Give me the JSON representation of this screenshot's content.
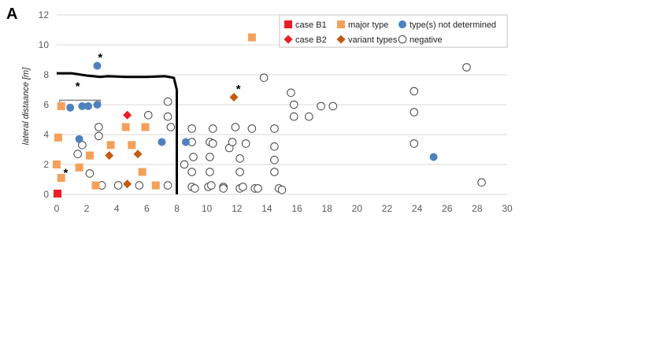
{
  "panel_label": "A",
  "chart_data": {
    "type": "scatter",
    "title": "",
    "xlabel": "",
    "ylabel": "lateral distaance [m]",
    "xlim": [
      0,
      30
    ],
    "ylim": [
      0,
      12
    ],
    "xticks": [
      "0",
      "2",
      "4",
      "6",
      "8",
      "10",
      "12",
      "14",
      "16",
      "18",
      "20",
      "22",
      "24",
      "26",
      "28",
      "30"
    ],
    "yticks": [
      "0",
      "2",
      "4",
      "6",
      "8",
      "10",
      "12"
    ],
    "grid": "horizontal",
    "legend_position": "top-right",
    "legend_columns": [
      [
        "case B1",
        "case B2"
      ],
      [
        "major type",
        "variant types"
      ],
      [
        "type(s) not determined",
        "negative"
      ]
    ],
    "series": [
      {
        "name": "case B1",
        "marker": "square",
        "color": "#ee1c24",
        "points": [
          [
            0,
            0
          ]
        ]
      },
      {
        "name": "case B2",
        "marker": "diamond",
        "color": "#ee1c24",
        "points": [
          [
            4.7,
            5.3
          ]
        ]
      },
      {
        "name": "major type",
        "marker": "square",
        "color": "#f5a05a",
        "points": [
          [
            0.3,
            5.9
          ],
          [
            0.1,
            3.8
          ],
          [
            0.0,
            2.0
          ],
          [
            0.3,
            1.1
          ],
          [
            1.5,
            1.8
          ],
          [
            2.2,
            2.6
          ],
          [
            2.6,
            0.6
          ],
          [
            3.6,
            3.3
          ],
          [
            4.6,
            4.5
          ],
          [
            5.0,
            3.3
          ],
          [
            5.9,
            4.5
          ],
          [
            5.7,
            1.5
          ],
          [
            6.6,
            0.6
          ],
          [
            13.0,
            10.5
          ]
        ]
      },
      {
        "name": "variant types",
        "marker": "diamond",
        "color": "#c55a11",
        "points": [
          [
            3.5,
            2.6
          ],
          [
            5.4,
            2.7
          ],
          [
            4.7,
            0.7
          ],
          [
            11.8,
            6.5
          ]
        ]
      },
      {
        "name": "type(s) not determined",
        "marker": "circle",
        "color": "#4f81bd",
        "points": [
          [
            2.7,
            8.6
          ],
          [
            0.9,
            5.8
          ],
          [
            1.7,
            5.9
          ],
          [
            2.1,
            5.9
          ],
          [
            2.7,
            6.0
          ],
          [
            1.5,
            3.7
          ],
          [
            7.0,
            3.5
          ],
          [
            8.6,
            3.5
          ],
          [
            25.1,
            2.5
          ]
        ]
      },
      {
        "name": "negative",
        "marker": "circle-open",
        "color": "#404040",
        "points": [
          [
            1.4,
            2.7
          ],
          [
            1.7,
            3.3
          ],
          [
            2.8,
            4.5
          ],
          [
            2.8,
            3.9
          ],
          [
            2.2,
            1.4
          ],
          [
            3.0,
            0.6
          ],
          [
            4.1,
            0.6
          ],
          [
            5.5,
            0.6
          ],
          [
            6.1,
            5.3
          ],
          [
            7.4,
            6.2
          ],
          [
            7.4,
            5.2
          ],
          [
            7.6,
            4.5
          ],
          [
            7.4,
            0.6
          ],
          [
            8.5,
            2.0
          ],
          [
            9.0,
            4.4
          ],
          [
            9.0,
            3.5
          ],
          [
            9.1,
            2.5
          ],
          [
            9.0,
            1.5
          ],
          [
            9.0,
            0.5
          ],
          [
            9.2,
            0.4
          ],
          [
            10.2,
            3.5
          ],
          [
            10.4,
            3.4
          ],
          [
            10.2,
            2.5
          ],
          [
            10.2,
            1.5
          ],
          [
            10.1,
            0.5
          ],
          [
            10.4,
            4.4
          ],
          [
            10.3,
            0.6
          ],
          [
            11.1,
            0.5
          ],
          [
            11.1,
            0.4
          ],
          [
            11.5,
            3.1
          ],
          [
            11.7,
            3.5
          ],
          [
            11.9,
            4.5
          ],
          [
            12.2,
            2.4
          ],
          [
            12.2,
            1.5
          ],
          [
            12.2,
            0.4
          ],
          [
            12.4,
            0.5
          ],
          [
            12.6,
            3.4
          ],
          [
            13.0,
            4.4
          ],
          [
            13.2,
            0.4
          ],
          [
            13.4,
            0.4
          ],
          [
            13.8,
            7.8
          ],
          [
            14.5,
            4.4
          ],
          [
            14.5,
            3.2
          ],
          [
            14.5,
            2.3
          ],
          [
            14.5,
            1.5
          ],
          [
            14.8,
            0.4
          ],
          [
            15.0,
            0.3
          ],
          [
            15.6,
            6.8
          ],
          [
            15.8,
            6.0
          ],
          [
            15.8,
            5.2
          ],
          [
            16.8,
            5.2
          ],
          [
            17.6,
            5.9
          ],
          [
            18.4,
            5.9
          ],
          [
            23.8,
            6.9
          ],
          [
            23.8,
            5.5
          ],
          [
            23.8,
            3.4
          ],
          [
            27.3,
            8.5
          ],
          [
            28.3,
            0.8
          ]
        ]
      }
    ],
    "annotations": [
      {
        "text": "*",
        "x": 2.9,
        "y": 9.2
      },
      {
        "text": "*",
        "x": 1.4,
        "y": 7.3
      },
      {
        "text": "*",
        "x": 0.6,
        "y": 1.5
      },
      {
        "text": "*",
        "x": 12.1,
        "y": 7.1
      }
    ],
    "bracket": {
      "x": [
        0.2,
        2.9
      ],
      "y": 6.3
    },
    "boundary_path": [
      [
        0,
        8.1
      ],
      [
        1,
        8.1
      ],
      [
        2,
        7.95
      ],
      [
        2.9,
        7.85
      ],
      [
        3.4,
        7.9
      ],
      [
        4.6,
        7.85
      ],
      [
        6.0,
        7.85
      ],
      [
        7.2,
        7.9
      ],
      [
        7.8,
        7.8
      ],
      [
        8.0,
        7.0
      ],
      [
        8.0,
        0
      ]
    ]
  }
}
